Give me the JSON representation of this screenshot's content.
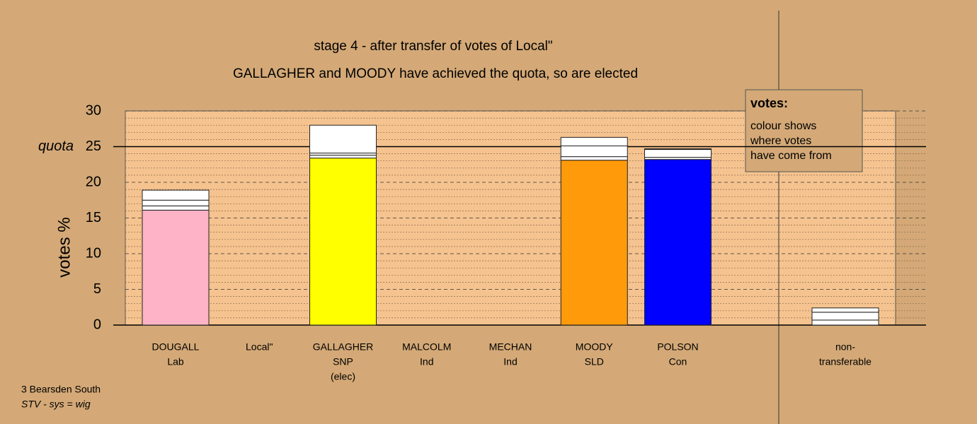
{
  "chart_data": {
    "type": "stacked_bar",
    "title": "stage 4 - after transfer of votes of Local\"",
    "subtitle": "GALLAGHER and MOODY have achieved the quota, so are elected",
    "y_label": "votes %",
    "quota_label": "quota",
    "quota": 25,
    "categories": [
      [
        "DOUGALL",
        "Lab"
      ],
      [
        "Local\""
      ],
      [
        "GALLAGHER",
        "SNP",
        "(elec)"
      ],
      [
        "MALCOLM",
        "Ind"
      ],
      [
        "MECHAN",
        "Ind"
      ],
      [
        "MOODY",
        "SLD"
      ],
      [
        "POLSON",
        "Con"
      ],
      [
        "non-",
        "transferable"
      ]
    ],
    "series": [
      {
        "colors": [
          "#ffb3c6",
          "#ffffff",
          "#ffff00",
          "#ffffff",
          "#ffffff",
          "#ff9a0a",
          "#0000ff",
          "#ffffff"
        ],
        "values": [
          16.1,
          0,
          23.4,
          0,
          0,
          23.1,
          23.2,
          0.7
        ]
      },
      {
        "color": "#ffffff",
        "values": [
          0.6,
          0,
          0.4,
          0,
          0,
          0.5,
          0.3,
          1.1
        ]
      },
      {
        "color": "#ffffff",
        "values": [
          0.8,
          0,
          0.3,
          0,
          0,
          1.5,
          1.1,
          0.6
        ]
      },
      {
        "color": "#ffffff",
        "values": [
          1.4,
          0,
          3.9,
          0,
          0,
          1.2,
          0.1,
          0
        ]
      }
    ],
    "ylim": [
      0,
      30
    ],
    "yticks": [
      0,
      5,
      10,
      15,
      20,
      25,
      30
    ],
    "minor_yticks": [
      1,
      2,
      3,
      4,
      6,
      7,
      8,
      9,
      11,
      12,
      13,
      14,
      16,
      17,
      18,
      19,
      21,
      22,
      23,
      24,
      26,
      27,
      28,
      29
    ],
    "grid": true,
    "legend": {
      "title": "votes:",
      "lines": [
        "colour shows",
        "where votes",
        "have come from"
      ]
    },
    "footer": [
      "3 Bearsden South",
      "STV - sys = wig"
    ]
  }
}
